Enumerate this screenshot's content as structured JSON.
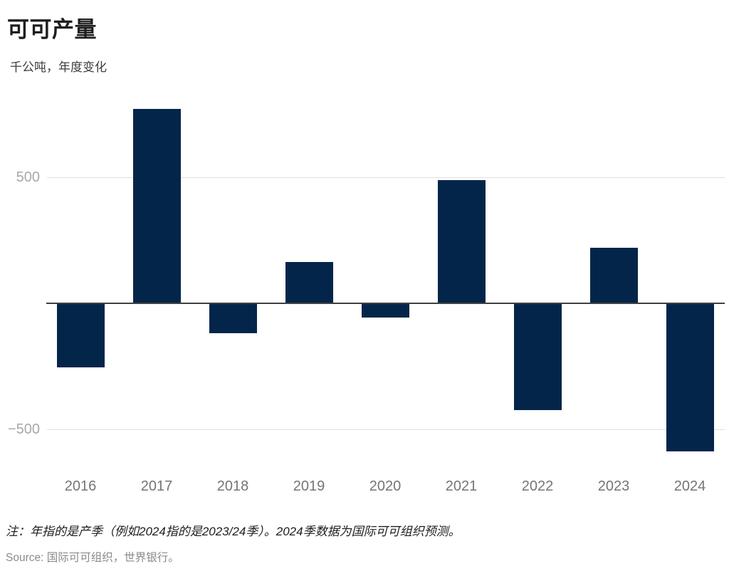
{
  "header": {
    "title": "可可产量",
    "subtitle": "千公吨，年度变化"
  },
  "chart_data": {
    "type": "bar",
    "title": "可可产量",
    "subtitle_unit_label": "千公吨，年度变化",
    "categories": [
      "2016",
      "2017",
      "2018",
      "2019",
      "2020",
      "2021",
      "2022",
      "2023",
      "2024"
    ],
    "values": [
      -250,
      770,
      -115,
      165,
      -55,
      490,
      -420,
      220,
      -585
    ],
    "xlabel": "",
    "ylabel": "千公吨，年度变化",
    "ylim": [
      -650,
      840
    ],
    "yticks": [
      500,
      -500
    ],
    "ytick_labels": [
      "500",
      "−500"
    ],
    "grid": "horizontal",
    "legend": "none",
    "bar_color": "#04254a",
    "axis_color": "#404040",
    "gridline_color": "#e0e0e0"
  },
  "footer": {
    "note": "注：年指的是产季（例如2024指的是2023/24季）。2024季数据为国际可可组织预测。",
    "source": "Source: 国际可可组织，世界银行。"
  }
}
